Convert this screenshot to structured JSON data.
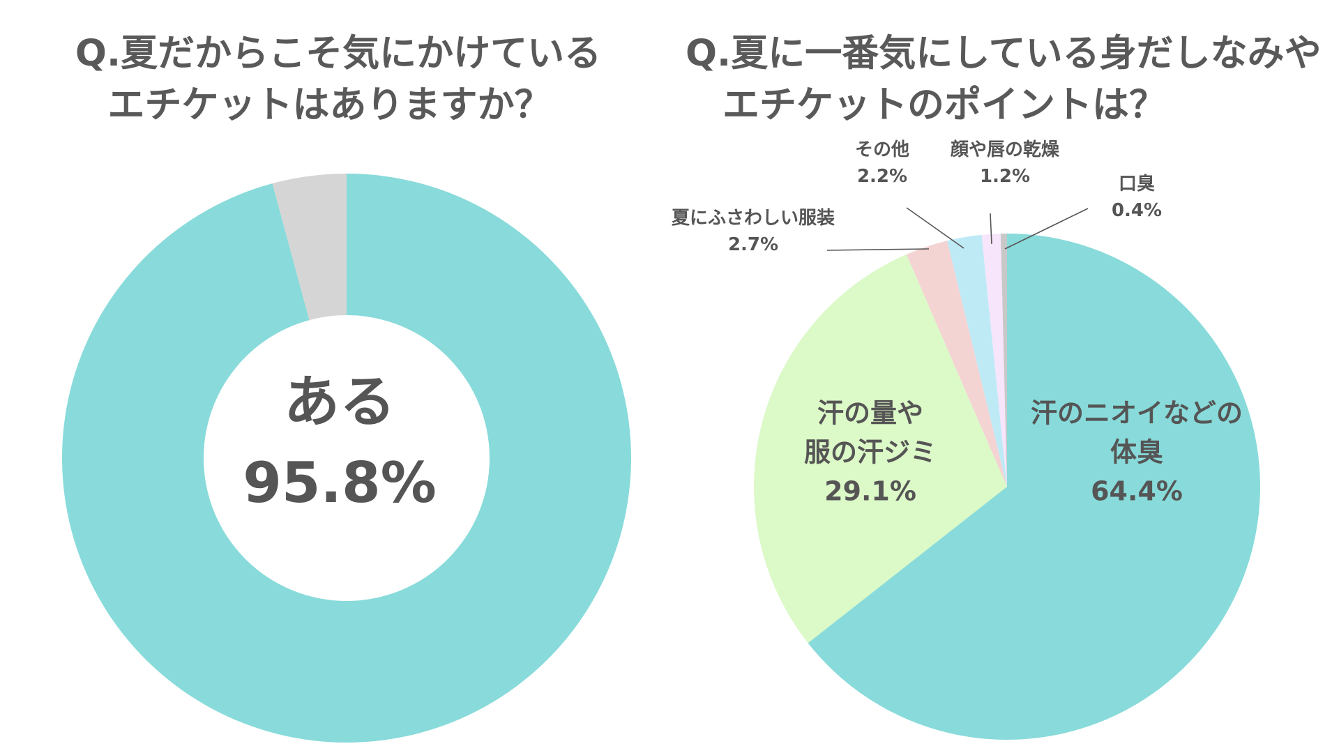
{
  "chart_data": [
    {
      "type": "pie",
      "variant": "donut",
      "title": [
        "Q.夏だからこそ気にかけている",
        "エチケットはありますか？"
      ],
      "slices": [
        {
          "label": "ある",
          "value": 95.8,
          "value_label": "95.8%",
          "color": "#88DBDA"
        },
        {
          "label": "",
          "value": 4.2,
          "value_label": "",
          "color": "#D5D5D5"
        }
      ],
      "center_label": "ある",
      "center_value": "95.8%"
    },
    {
      "type": "pie",
      "title": [
        "Q.夏に一番気にしている身だしなみや",
        "エチケットのポイントは？"
      ],
      "slices": [
        {
          "label_lines": [
            "汗のニオイなどの",
            "体臭"
          ],
          "value": 64.4,
          "value_label": "64.4%",
          "color": "#88DBDA"
        },
        {
          "label_lines": [
            "汗の量や",
            "服の汗ジミ"
          ],
          "value": 29.1,
          "value_label": "29.1%",
          "color": "#DCF9C8"
        },
        {
          "label_lines": [
            "夏にふさわしい服装"
          ],
          "value": 2.7,
          "value_label": "2.7%",
          "color": "#F4D3D3"
        },
        {
          "label_lines": [
            "その他"
          ],
          "value": 2.2,
          "value_label": "2.2%",
          "color": "#BEEAF6"
        },
        {
          "label_lines": [
            "顔や唇の乾燥"
          ],
          "value": 1.2,
          "value_label": "1.2%",
          "color": "#F6E5FB"
        },
        {
          "label_lines": [
            "口臭"
          ],
          "value": 0.4,
          "value_label": "0.4%",
          "color": "#C8C8C8"
        }
      ]
    }
  ],
  "colors": {
    "text": "#555555",
    "leader_line": "#555555",
    "background": "#FFFFFF"
  }
}
